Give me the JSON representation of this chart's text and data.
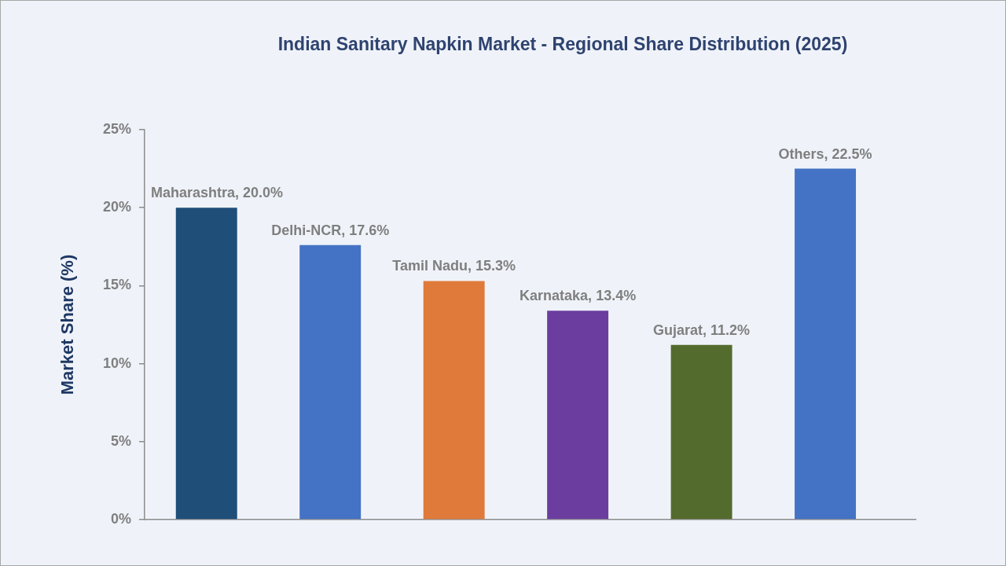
{
  "chart_data": {
    "type": "bar",
    "title": "Indian Sanitary Napkin Market - Regional Share Distribution (2025)",
    "ylabel": "Market Share (%)",
    "categories": [
      null,
      null,
      null,
      null,
      null,
      null
    ],
    "values": [
      20.0,
      17.6,
      15.3,
      13.4,
      11.2,
      22.5
    ],
    "colors": [
      "#1f4e79",
      "#4472c4",
      "#e07a3a",
      "#6b3d9e",
      "#546b2e",
      "#4472c4"
    ],
    "value_labels": [
      "Maharashtra, 20.0%",
      "Delhi-NCR, 17.6%",
      "Tamil Nadu, 15.3%",
      "Karnataka, 13.4%",
      "Gujarat, 11.2%",
      "Others, 22.5%"
    ],
    "ylim": [
      0,
      25
    ],
    "yticks": [
      {
        "value": 0,
        "label": "0%"
      },
      {
        "value": 5,
        "label": "5%"
      },
      {
        "value": 10,
        "label": "10%"
      },
      {
        "value": 15,
        "label": "15%"
      },
      {
        "value": 20,
        "label": "20%"
      },
      {
        "value": 25,
        "label": "25%"
      }
    ],
    "tick_labels": "y"
  }
}
